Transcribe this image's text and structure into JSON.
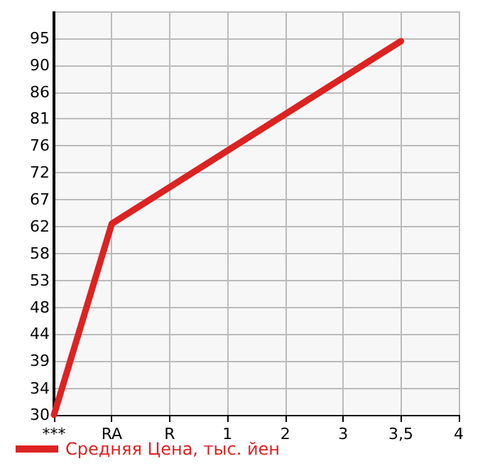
{
  "chart_data": {
    "type": "line",
    "categories": [
      "***",
      "RA",
      "R",
      "1",
      "2",
      "3",
      "3,5",
      "4"
    ],
    "series": [
      {
        "name": "Средняя Цена, тыс. йен",
        "color": "#dd2222",
        "values": [
          30,
          63,
          null,
          null,
          null,
          null,
          94.5,
          null
        ]
      }
    ],
    "ylim": [
      30,
      99.64
    ],
    "yticks": [
      30,
      {
        "value": 34.49,
        "label": "34"
      },
      {
        "value": 39.29,
        "label": "39"
      },
      {
        "value": 43.93,
        "label": "44"
      },
      {
        "value": 48.49,
        "label": "48"
      },
      {
        "value": 53.21,
        "label": "53"
      },
      {
        "value": 57.86,
        "label": "58"
      },
      {
        "value": 62.5,
        "label": "62"
      },
      {
        "value": 67.14,
        "label": "67"
      },
      {
        "value": 71.79,
        "label": "72"
      },
      {
        "value": 76.43,
        "label": "76"
      },
      {
        "value": 81.07,
        "label": "81"
      },
      {
        "value": 85.71,
        "label": "86"
      },
      {
        "value": 90.36,
        "label": "90"
      },
      {
        "value": 95,
        "label": "95"
      },
      {
        "value": 99.64,
        "label": null
      }
    ],
    "grid": true,
    "legend": "bottom left",
    "marker": "none",
    "line_style": "solid"
  }
}
